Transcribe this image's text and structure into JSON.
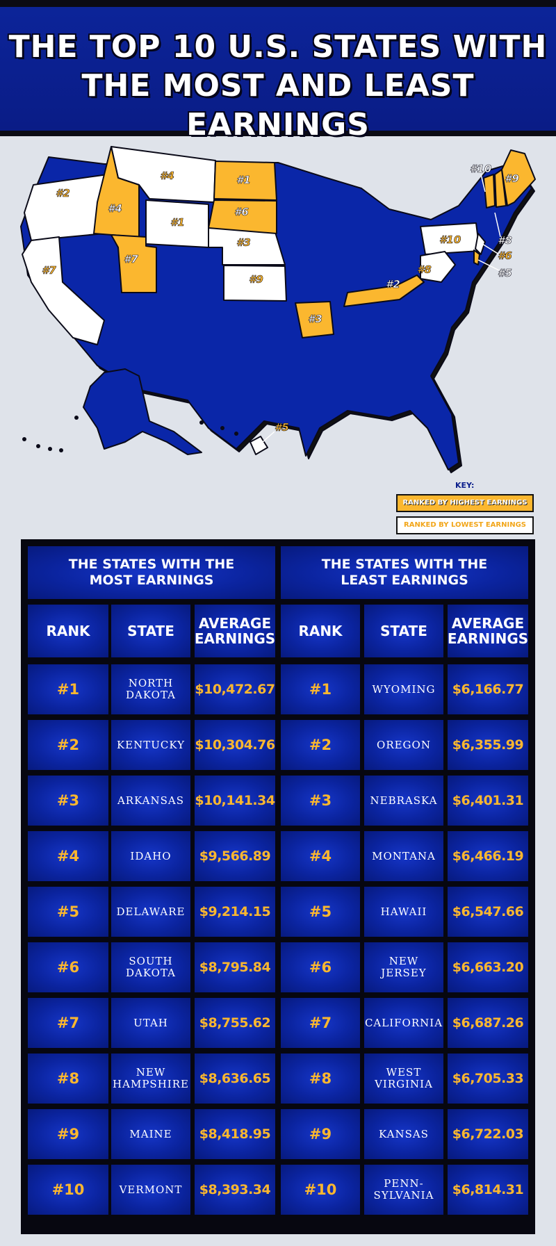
{
  "title": {
    "line1": "THE TOP 10 U.S. STATES WITH",
    "line2": "THE MOST AND LEAST EARNINGS"
  },
  "colors": {
    "brand_blue": "#0a26a8",
    "highest": "#fbb72f",
    "lowest": "#ffffff",
    "outline": "#111111"
  },
  "map": {
    "labels": [
      {
        "text": "#4",
        "group": "highest",
        "state": "Idaho"
      },
      {
        "text": "#1",
        "group": "highest",
        "state": "North Dakota"
      },
      {
        "text": "#6",
        "group": "highest",
        "state": "South Dakota"
      },
      {
        "text": "#7",
        "group": "highest",
        "state": "Utah"
      },
      {
        "text": "#3",
        "group": "highest",
        "state": "Arkansas"
      },
      {
        "text": "#2",
        "group": "highest",
        "state": "Kentucky"
      },
      {
        "text": "#9",
        "group": "highest",
        "state": "Maine"
      },
      {
        "text": "#10",
        "group": "highest",
        "state": "Vermont"
      },
      {
        "text": "#8",
        "group": "highest",
        "state": "New Hampshire"
      },
      {
        "text": "#5",
        "group": "highest",
        "state": "Delaware"
      },
      {
        "text": "#4",
        "group": "lowest",
        "state": "Montana"
      },
      {
        "text": "#2",
        "group": "lowest",
        "state": "Oregon"
      },
      {
        "text": "#1",
        "group": "lowest",
        "state": "Wyoming"
      },
      {
        "text": "#3",
        "group": "lowest",
        "state": "Nebraska"
      },
      {
        "text": "#9",
        "group": "lowest",
        "state": "Kansas"
      },
      {
        "text": "#7",
        "group": "lowest",
        "state": "California"
      },
      {
        "text": "#10",
        "group": "lowest",
        "state": "Pennsylvania"
      },
      {
        "text": "#8",
        "group": "lowest",
        "state": "West Virginia"
      },
      {
        "text": "#6",
        "group": "lowest",
        "state": "New Jersey"
      },
      {
        "text": "#5",
        "group": "lowest",
        "state": "Hawaii"
      }
    ],
    "key": {
      "title": "KEY:",
      "highest": "RANKED BY HIGHEST EARNINGS",
      "lowest": "RANKED BY LOWEST EARNINGS"
    }
  },
  "table": {
    "most_title": "THE STATES WITH THE\nMOST EARNINGS",
    "least_title": "THE STATES WITH THE\nLEAST EARNINGS",
    "headers": [
      "RANK",
      "STATE",
      "AVERAGE\nEARNINGS"
    ],
    "most": [
      {
        "rank": "#1",
        "state": "NORTH\nDAKOTA",
        "earnings": "$10,472.67"
      },
      {
        "rank": "#2",
        "state": "KENTUCKY",
        "earnings": "$10,304.76"
      },
      {
        "rank": "#3",
        "state": "ARKANSAS",
        "earnings": "$10,141.34"
      },
      {
        "rank": "#4",
        "state": "IDAHO",
        "earnings": "$9,566.89"
      },
      {
        "rank": "#5",
        "state": "DELAWARE",
        "earnings": "$9,214.15"
      },
      {
        "rank": "#6",
        "state": "SOUTH\nDAKOTA",
        "earnings": "$8,795.84"
      },
      {
        "rank": "#7",
        "state": "UTAH",
        "earnings": "$8,755.62"
      },
      {
        "rank": "#8",
        "state": "NEW\nHAMPSHIRE",
        "earnings": "$8,636.65"
      },
      {
        "rank": "#9",
        "state": "MAINE",
        "earnings": "$8,418.95"
      },
      {
        "rank": "#10",
        "state": "VERMONT",
        "earnings": "$8,393.34"
      }
    ],
    "least": [
      {
        "rank": "#1",
        "state": "WYOMING",
        "earnings": "$6,166.77"
      },
      {
        "rank": "#2",
        "state": "OREGON",
        "earnings": "$6,355.99"
      },
      {
        "rank": "#3",
        "state": "NEBRASKA",
        "earnings": "$6,401.31"
      },
      {
        "rank": "#4",
        "state": "MONTANA",
        "earnings": "$6,466.19"
      },
      {
        "rank": "#5",
        "state": "HAWAII",
        "earnings": "$6,547.66"
      },
      {
        "rank": "#6",
        "state": "NEW\nJERSEY",
        "earnings": "$6,663.20"
      },
      {
        "rank": "#7",
        "state": "CALIFORNIA",
        "earnings": "$6,687.26"
      },
      {
        "rank": "#8",
        "state": "WEST\nVIRGINIA",
        "earnings": "$6,705.33"
      },
      {
        "rank": "#9",
        "state": "KANSAS",
        "earnings": "$6,722.03"
      },
      {
        "rank": "#10",
        "state": "PENN-\nSYLVANIA",
        "earnings": "$6,814.31"
      }
    ]
  }
}
